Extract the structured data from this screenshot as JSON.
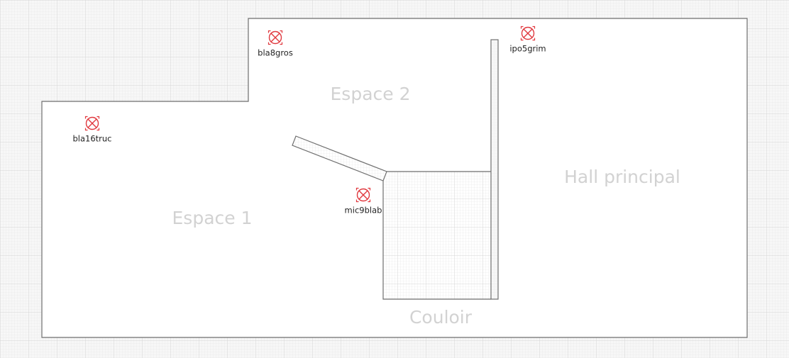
{
  "map": {
    "colors": {
      "background": "#f7f7f7",
      "grid_fine": "#e4e4e4",
      "grid_major": "#d4d4d4",
      "floor": "#ffffff",
      "wall": "#6e6e6e",
      "zone_label": "#d2d2d2",
      "device_label": "#222222",
      "device_icon": "#e0383e"
    },
    "zones": {
      "espace1": "Espace 1",
      "espace2": "Espace 2",
      "hall": "Hall principal",
      "couloir": "Couloir"
    },
    "devices": [
      {
        "id": "bla8gros",
        "label": "bla8gros",
        "icon": "camera-dome-icon"
      },
      {
        "id": "ipo5grim",
        "label": "ipo5grim",
        "icon": "camera-dome-icon"
      },
      {
        "id": "bla16truc",
        "label": "bla16truc",
        "icon": "camera-dome-icon"
      },
      {
        "id": "mic9blab",
        "label": "mic9blab",
        "icon": "camera-dome-icon"
      }
    ]
  }
}
